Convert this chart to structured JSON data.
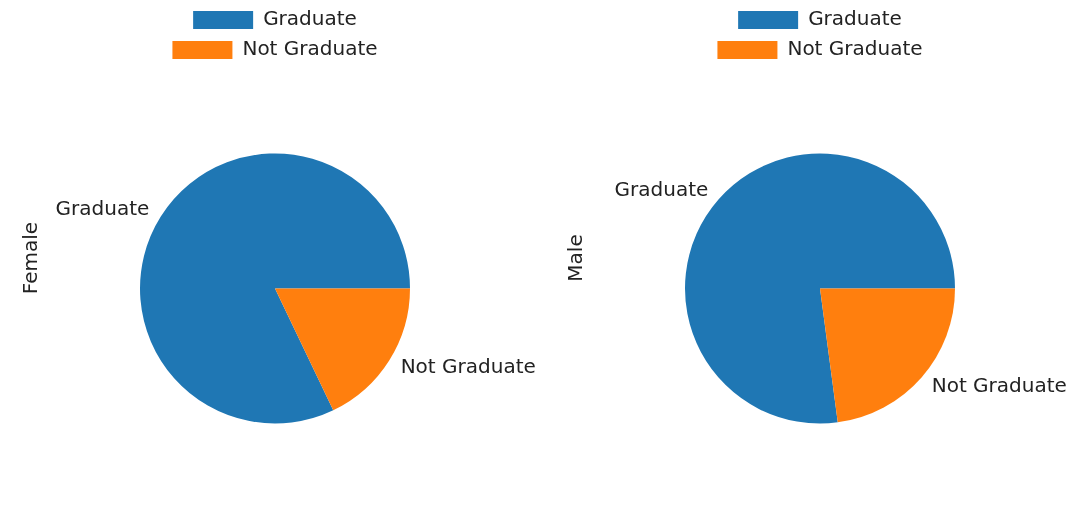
{
  "chart_data": [
    {
      "type": "pie",
      "ylabel": "Female",
      "categories": [
        "Graduate",
        "Not Graduate"
      ],
      "values": [
        82.1,
        17.9
      ],
      "colors": [
        "#1f77b4",
        "#ff7f0e"
      ],
      "legend": "top"
    },
    {
      "type": "pie",
      "ylabel": "Male",
      "categories": [
        "Graduate",
        "Not Graduate"
      ],
      "values": [
        77.1,
        22.9
      ],
      "colors": [
        "#1f77b4",
        "#ff7f0e"
      ],
      "legend": "top"
    }
  ]
}
